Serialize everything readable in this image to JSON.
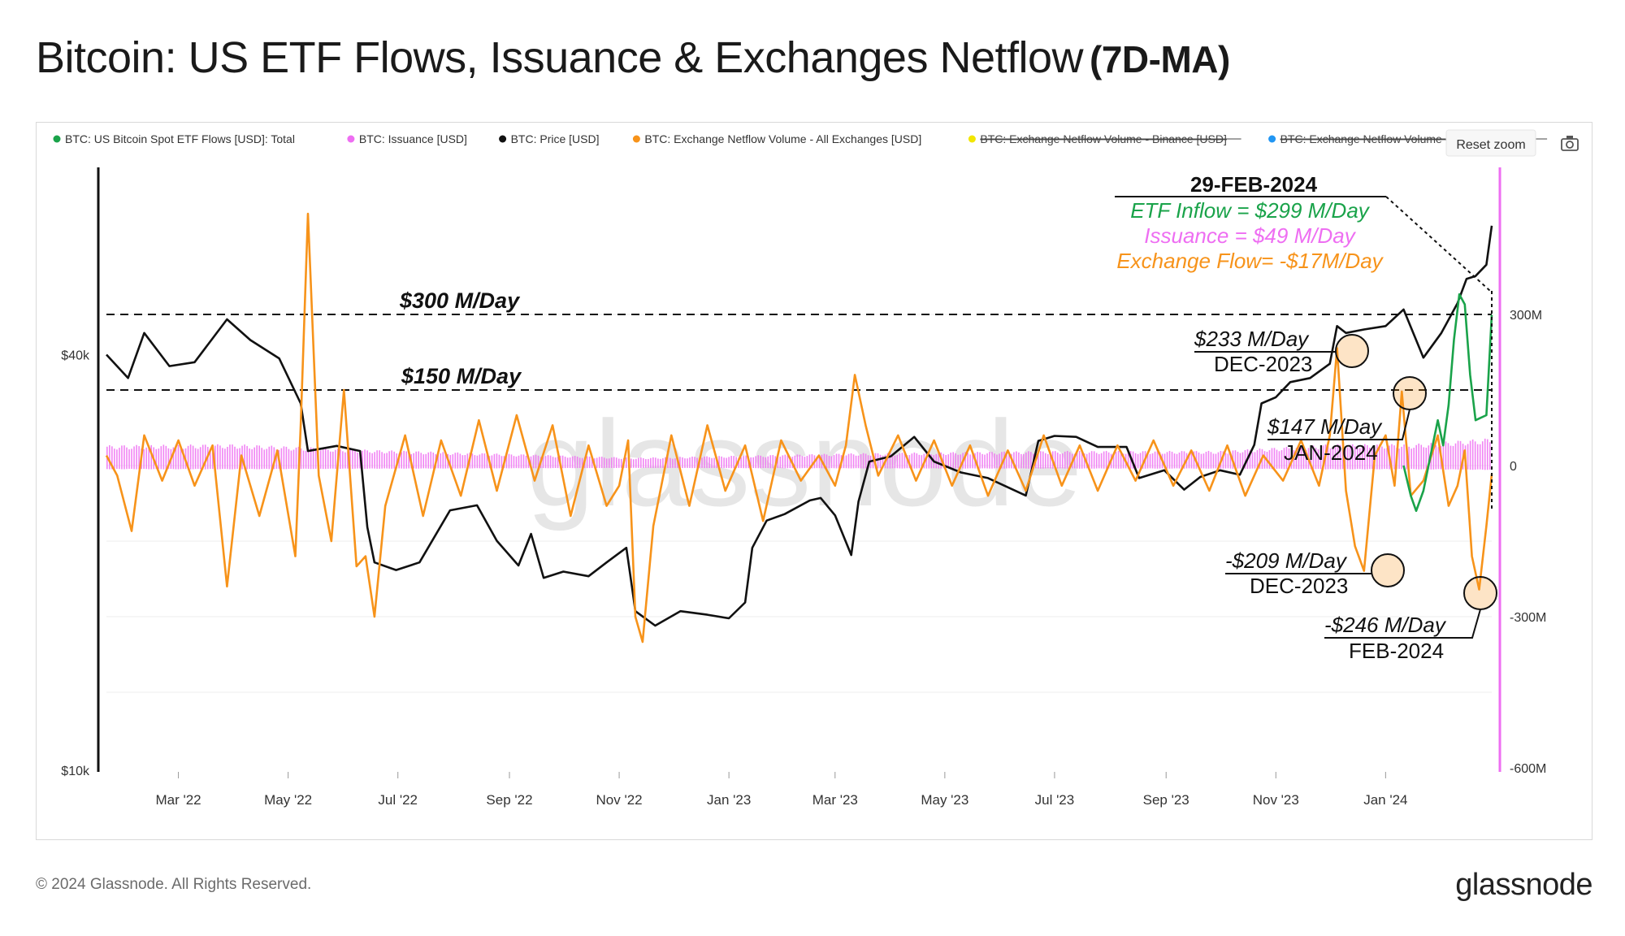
{
  "header": {
    "title": "Bitcoin: US ETF Flows, Issuance  & Exchanges Netflow",
    "subtitle": "(7D-MA)"
  },
  "toolbar": {
    "reset_zoom": "Reset zoom",
    "camera_icon": "camera-icon"
  },
  "legend": [
    {
      "label": "BTC: US Bitcoin Spot ETF Flows [USD]: Total",
      "color": "#1aa34a",
      "struck": false
    },
    {
      "label": "BTC: Issuance [USD]",
      "color": "#ee6ef2",
      "struck": false
    },
    {
      "label": "BTC: Price [USD]",
      "color": "#111111",
      "struck": false
    },
    {
      "label": "BTC: Exchange Netflow Volume - All Exchanges [USD]",
      "color": "#f7931a",
      "struck": false
    },
    {
      "label": "BTC: Exchange Netflow Volume - Binance [USD]",
      "color": "#f2e600",
      "struck": true
    },
    {
      "label": "BTC: Exchange Netflow Volume - Coinbase [USD]",
      "color": "#2196f3",
      "struck": true
    }
  ],
  "footer": {
    "copyright": "© 2024 Glassnode. All Rights Reserved.",
    "logo": "glassnode"
  },
  "watermark": "glassnode",
  "chart_data": {
    "type": "line",
    "x_range": [
      "2022-01-20",
      "2024-02-29"
    ],
    "x_ticks": [
      "Mar '22",
      "May '22",
      "Jul '22",
      "Sep '22",
      "Nov '22",
      "Jan '23",
      "Mar '23",
      "May '23",
      "Jul '23",
      "Sep '23",
      "Nov '23",
      "Jan '24"
    ],
    "y_left": {
      "scale": "log",
      "range": [
        10000,
        70000
      ],
      "ticks": [
        "$40k",
        "$10k"
      ]
    },
    "y_right": {
      "range": [
        -600,
        600
      ],
      "unit": "M USD",
      "ticks": [
        "300M",
        "0",
        "-300M",
        "-600M"
      ]
    },
    "reference_lines": [
      {
        "value": 300,
        "label": "$300 M/Day"
      },
      {
        "value": 150,
        "label": "$150 M/Day"
      }
    ],
    "annotation_box": {
      "date": "29-FEB-2024",
      "etf": "ETF Inflow = $299 M/Day",
      "issuance": "Issuance = $49 M/Day",
      "exchange": "Exchange Flow= -$17M/Day"
    },
    "callouts": [
      {
        "value": "$233 M/Day",
        "date": "DEC-2023"
      },
      {
        "value": "$147 M/Day",
        "date": "JAN-2024"
      },
      {
        "value": "-$209 M/Day",
        "date": "DEC-2023"
      },
      {
        "value": "-$246 M/Day",
        "date": "FEB-2024"
      }
    ],
    "series": [
      {
        "name": "BTC: Price [USD]",
        "axis": "left",
        "color": "#111111",
        "x": [
          "2022-01-20",
          "2022-02-01",
          "2022-02-10",
          "2022-02-24",
          "2022-03-10",
          "2022-03-28",
          "2022-04-10",
          "2022-04-26",
          "2022-05-08",
          "2022-05-12",
          "2022-05-28",
          "2022-06-10",
          "2022-06-14",
          "2022-06-18",
          "2022-06-30",
          "2022-07-13",
          "2022-07-30",
          "2022-08-14",
          "2022-08-25",
          "2022-09-06",
          "2022-09-13",
          "2022-09-20",
          "2022-10-01",
          "2022-10-15",
          "2022-10-25",
          "2022-11-05",
          "2022-11-08",
          "2022-11-10",
          "2022-11-21",
          "2022-12-05",
          "2022-12-20",
          "2023-01-01",
          "2023-01-10",
          "2023-01-14",
          "2023-01-22",
          "2023-02-01",
          "2023-02-15",
          "2023-02-21",
          "2023-03-01",
          "2023-03-10",
          "2023-03-14",
          "2023-03-20",
          "2023-04-01",
          "2023-04-14",
          "2023-04-25",
          "2023-05-10",
          "2023-05-25",
          "2023-06-15",
          "2023-06-22",
          "2023-07-01",
          "2023-07-13",
          "2023-07-25",
          "2023-08-10",
          "2023-08-17",
          "2023-08-31",
          "2023-09-11",
          "2023-09-20",
          "2023-10-01",
          "2023-10-12",
          "2023-10-20",
          "2023-10-24",
          "2023-11-01",
          "2023-11-09",
          "2023-11-20",
          "2023-12-01",
          "2023-12-05",
          "2023-12-10",
          "2023-12-20",
          "2024-01-01",
          "2024-01-11",
          "2024-01-22",
          "2024-02-01",
          "2024-02-10",
          "2024-02-15",
          "2024-02-20",
          "2024-02-26",
          "2024-02-29"
        ],
        "values": [
          40000,
          37000,
          43000,
          38500,
          39000,
          45000,
          42000,
          39500,
          34000,
          29000,
          29500,
          29000,
          22500,
          20000,
          19500,
          20000,
          23800,
          24200,
          21500,
          19800,
          22000,
          19000,
          19400,
          19100,
          20000,
          21000,
          18500,
          17000,
          16200,
          17000,
          16800,
          16600,
          17500,
          21000,
          23000,
          23500,
          24600,
          24800,
          23400,
          20500,
          24500,
          28000,
          28500,
          30400,
          28000,
          27000,
          26500,
          25000,
          30000,
          30500,
          30400,
          29400,
          29400,
          26500,
          27200,
          25500,
          26600,
          27200,
          26800,
          29600,
          34000,
          34700,
          36500,
          37000,
          38800,
          44000,
          43000,
          43500,
          44000,
          46500,
          39600,
          43000,
          47500,
          51500,
          52000,
          54000,
          61500
        ]
      },
      {
        "name": "BTC: Exchange Netflow Volume - All Exchanges [USD]",
        "axis": "right",
        "color": "#f7931a",
        "x": [
          "2022-01-20",
          "2022-01-26",
          "2022-02-03",
          "2022-02-10",
          "2022-02-20",
          "2022-03-01",
          "2022-03-10",
          "2022-03-20",
          "2022-03-28",
          "2022-04-05",
          "2022-04-15",
          "2022-04-25",
          "2022-05-05",
          "2022-05-08",
          "2022-05-12",
          "2022-05-18",
          "2022-05-25",
          "2022-06-01",
          "2022-06-08",
          "2022-06-13",
          "2022-06-18",
          "2022-06-24",
          "2022-07-05",
          "2022-07-15",
          "2022-07-25",
          "2022-08-05",
          "2022-08-15",
          "2022-08-25",
          "2022-09-05",
          "2022-09-15",
          "2022-09-25",
          "2022-10-05",
          "2022-10-15",
          "2022-10-25",
          "2022-11-01",
          "2022-11-06",
          "2022-11-10",
          "2022-11-14",
          "2022-11-20",
          "2022-11-30",
          "2022-12-10",
          "2022-12-20",
          "2022-12-30",
          "2023-01-10",
          "2023-01-20",
          "2023-01-30",
          "2023-02-10",
          "2023-02-20",
          "2023-03-01",
          "2023-03-07",
          "2023-03-12",
          "2023-03-18",
          "2023-03-25",
          "2023-04-05",
          "2023-04-15",
          "2023-04-25",
          "2023-05-05",
          "2023-05-15",
          "2023-05-25",
          "2023-06-05",
          "2023-06-15",
          "2023-06-25",
          "2023-07-05",
          "2023-07-15",
          "2023-07-25",
          "2023-08-05",
          "2023-08-15",
          "2023-08-25",
          "2023-09-05",
          "2023-09-15",
          "2023-09-25",
          "2023-10-05",
          "2023-10-15",
          "2023-10-25",
          "2023-11-05",
          "2023-11-15",
          "2023-11-25",
          "2023-12-01",
          "2023-12-05",
          "2023-12-10",
          "2023-12-15",
          "2023-12-20",
          "2023-12-26",
          "2024-01-01",
          "2024-01-06",
          "2024-01-10",
          "2024-01-15",
          "2024-01-22",
          "2024-01-30",
          "2024-02-05",
          "2024-02-10",
          "2024-02-14",
          "2024-02-18",
          "2024-02-22",
          "2024-02-26",
          "2024-02-29"
        ],
        "values": [
          20,
          -20,
          -130,
          60,
          -30,
          50,
          -40,
          40,
          -240,
          20,
          -100,
          30,
          -180,
          80,
          500,
          -20,
          -150,
          150,
          -200,
          -180,
          -300,
          -80,
          60,
          -100,
          50,
          -60,
          90,
          -50,
          100,
          -30,
          80,
          -100,
          40,
          -80,
          -40,
          50,
          -300,
          -350,
          -120,
          60,
          -80,
          80,
          -50,
          40,
          -110,
          50,
          -30,
          20,
          -40,
          40,
          180,
          80,
          -20,
          60,
          -30,
          50,
          -40,
          40,
          -60,
          30,
          -50,
          60,
          -40,
          40,
          -50,
          40,
          -30,
          50,
          -40,
          30,
          -50,
          40,
          -60,
          20,
          -30,
          50,
          -40,
          60,
          233,
          -50,
          -160,
          -209,
          20,
          60,
          -40,
          147,
          -60,
          -30,
          60,
          -80,
          -40,
          30,
          -180,
          -246,
          -120,
          -17
        ]
      },
      {
        "name": "BTC: Issuance [USD]",
        "axis": "right",
        "color": "#ee6ef2",
        "x": [
          "2022-01-20",
          "2022-04-01",
          "2022-06-15",
          "2022-11-10",
          "2023-03-15",
          "2023-07-01",
          "2023-10-01",
          "2023-12-01",
          "2024-01-15",
          "2024-02-29"
        ],
        "values": [
          36,
          38,
          28,
          14,
          22,
          26,
          26,
          38,
          38,
          49
        ]
      },
      {
        "name": "BTC: US Bitcoin Spot ETF Flows [USD]: Total",
        "axis": "right",
        "color": "#1aa34a",
        "x": [
          "2024-01-11",
          "2024-01-15",
          "2024-01-18",
          "2024-01-22",
          "2024-01-26",
          "2024-01-30",
          "2024-02-02",
          "2024-02-05",
          "2024-02-08",
          "2024-02-11",
          "2024-02-14",
          "2024-02-17",
          "2024-02-20",
          "2024-02-23",
          "2024-02-26",
          "2024-02-29"
        ],
        "values": [
          0,
          -60,
          -90,
          -50,
          20,
          90,
          40,
          120,
          250,
          340,
          320,
          180,
          90,
          95,
          100,
          299
        ]
      }
    ]
  }
}
